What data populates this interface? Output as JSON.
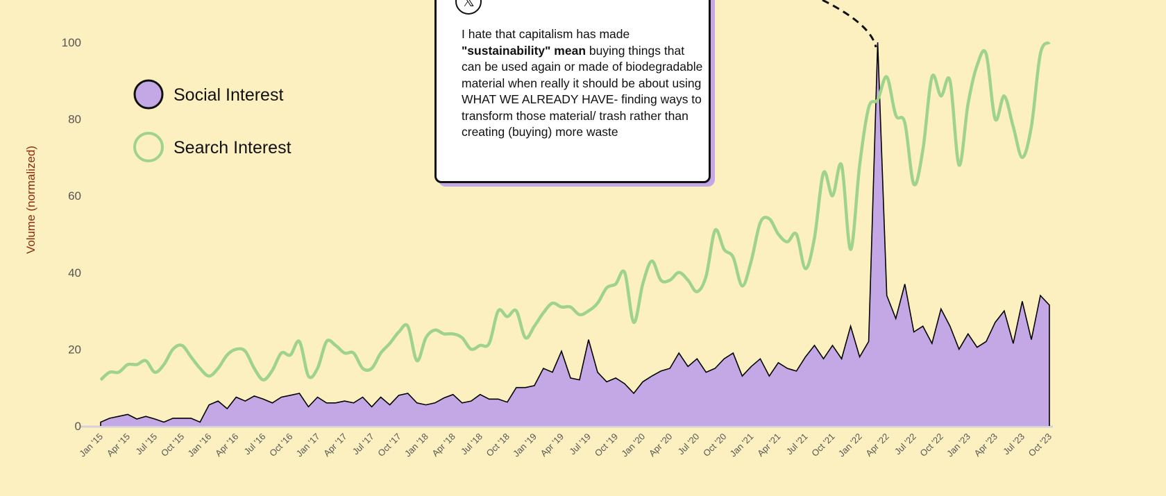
{
  "chart_data": {
    "type": "area+line",
    "title": "",
    "ylabel": "Volume (normalized)",
    "xlabel": "",
    "ylim": [
      0,
      100
    ],
    "yticks": [
      0,
      20,
      40,
      60,
      80,
      100
    ],
    "x_start": "Jan 2015",
    "x_end": "Oct 2023",
    "x_frequency": "monthly",
    "xtick_labels": [
      "Jan '15",
      "Apr '15",
      "Jul '15",
      "Oct '15",
      "Jan '16",
      "Apr '16",
      "Jul '16",
      "Oct '16",
      "Jan '17",
      "Apr '17",
      "Jul '17",
      "Oct '17",
      "Jan '18",
      "Apr '18",
      "Jul '18",
      "Oct '18",
      "Jan '19",
      "Apr '19",
      "Jul '19",
      "Oct '19",
      "Jan '20",
      "Apr '20",
      "Jul '20",
      "Oct '20",
      "Jan '21",
      "Apr '21",
      "Jul '21",
      "Oct '21",
      "Jan '22",
      "Apr '22",
      "Jul '22",
      "Oct '22",
      "Jan '23",
      "Apr '23",
      "Jul '23",
      "Oct '23"
    ],
    "legend_position": "top-left",
    "series": [
      {
        "name": "Social Interest",
        "type": "area",
        "color": "#c4a8e6",
        "values": [
          1,
          2,
          2.5,
          3,
          1.8,
          2.5,
          1.8,
          1,
          2,
          2,
          2,
          1,
          5.5,
          6.5,
          4.5,
          7.5,
          6.5,
          7.8,
          7,
          6,
          7.5,
          8,
          8.5,
          5,
          7.5,
          6,
          6,
          6.5,
          6,
          7.5,
          5,
          7.5,
          5.5,
          8,
          8.5,
          6,
          5.5,
          6,
          7.3,
          8.2,
          6,
          6.5,
          8.2,
          7,
          7,
          6.2,
          10,
          10,
          10.5,
          15,
          14,
          19.5,
          12.5,
          12,
          22.5,
          14,
          11.5,
          12.5,
          11,
          8.5,
          11.5,
          13,
          14.3,
          15,
          19,
          15.5,
          17.5,
          14,
          15,
          17.5,
          19,
          13,
          15.5,
          17.5,
          13,
          16.5,
          15,
          14.3,
          18,
          21,
          17.5,
          21,
          17.5,
          26,
          18,
          22,
          100,
          34,
          28,
          37,
          24.5,
          26,
          21.5,
          30.5,
          26,
          20,
          24,
          20.5,
          22,
          27,
          30,
          21.5,
          32.5,
          22.5,
          34,
          31.5
        ]
      },
      {
        "name": "Search Interest",
        "type": "line",
        "color": "#9fd38c",
        "values": [
          12,
          14,
          14,
          16,
          16,
          17,
          14,
          16,
          20,
          21,
          18,
          15,
          13,
          15,
          18.5,
          20,
          19.5,
          15,
          12,
          14.5,
          19,
          18.5,
          22,
          13,
          15,
          22,
          21,
          19,
          19,
          15,
          15,
          19,
          21.5,
          24.5,
          26,
          17,
          23,
          25,
          24,
          24,
          23,
          20,
          21,
          21.5,
          30,
          28.5,
          30,
          23,
          26,
          29.5,
          32,
          31,
          31,
          29,
          30,
          32,
          36,
          37,
          40,
          27,
          37,
          43,
          38,
          38,
          40,
          38,
          35,
          39,
          51,
          46,
          44,
          36.5,
          43,
          53,
          54,
          50,
          48,
          50,
          41,
          49,
          66,
          60,
          68,
          46,
          68,
          83,
          85,
          91,
          81,
          79,
          63,
          72,
          91,
          86,
          90,
          68,
          84,
          94,
          97,
          80,
          86,
          78,
          70,
          78,
          97,
          100
        ]
      }
    ],
    "annotation": {
      "target": "Mar '22 peak",
      "text_plain": "I hate that capitalism has made ",
      "text_bold": "\"sustainability\" mean",
      "text_rest": " buying things that can be used again or made of biodegradable material when really it should be about using WHAT WE ALREADY HAVE- finding ways to transform those material/ trash rather than creating (buying) more waste",
      "icon": "x-logo-icon"
    }
  }
}
